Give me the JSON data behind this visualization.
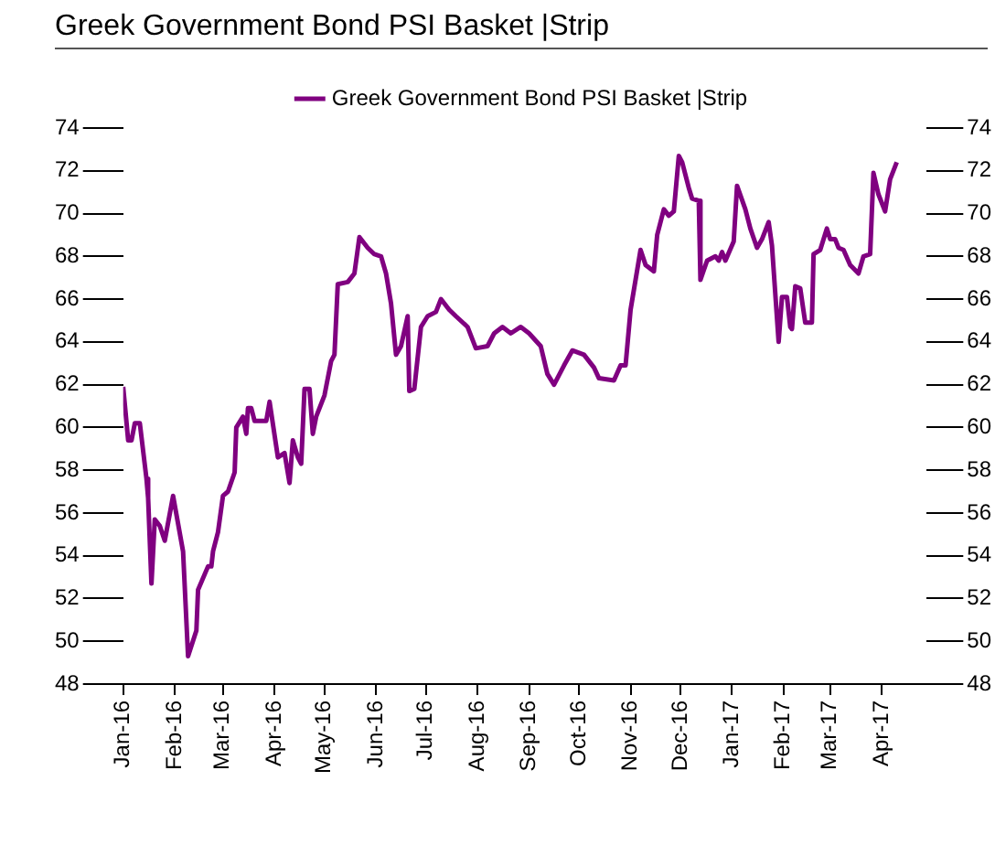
{
  "chart_data": {
    "type": "line",
    "title": "Greek Government Bond PSI Basket |Strip",
    "x": [
      "2016-01-01",
      "2016-01-04",
      "2016-01-06",
      "2016-01-08",
      "2016-01-11",
      "2016-01-15",
      "2016-01-16",
      "2016-01-18",
      "2016-01-20",
      "2016-01-23",
      "2016-01-26",
      "2016-01-31",
      "2016-02-06",
      "2016-02-09",
      "2016-02-14",
      "2016-02-15",
      "2016-02-21",
      "2016-02-23",
      "2016-02-24",
      "2016-02-27",
      "2016-03-01",
      "2016-03-04",
      "2016-03-08",
      "2016-03-09",
      "2016-03-13",
      "2016-03-15",
      "2016-03-16",
      "2016-03-18",
      "2016-03-20",
      "2016-03-27",
      "2016-03-29",
      "2016-04-03",
      "2016-04-07",
      "2016-04-10",
      "2016-04-12",
      "2016-04-15",
      "2016-04-17",
      "2016-04-19",
      "2016-04-22",
      "2016-04-24",
      "2016-04-26",
      "2016-05-01",
      "2016-05-05",
      "2016-05-07",
      "2016-05-09",
      "2016-05-15",
      "2016-05-19",
      "2016-05-22",
      "2016-05-27",
      "2016-05-31",
      "2016-06-04",
      "2016-06-07",
      "2016-06-10",
      "2016-06-13",
      "2016-06-16",
      "2016-06-20",
      "2016-06-21",
      "2016-06-24",
      "2016-06-28",
      "2016-07-02",
      "2016-07-07",
      "2016-07-10",
      "2016-07-15",
      "2016-07-19",
      "2016-07-26",
      "2016-07-31",
      "2016-08-07",
      "2016-08-11",
      "2016-08-16",
      "2016-08-21",
      "2016-08-27",
      "2016-09-01",
      "2016-09-08",
      "2016-09-12",
      "2016-09-16",
      "2016-09-22",
      "2016-09-27",
      "2016-10-04",
      "2016-10-10",
      "2016-10-13",
      "2016-10-22",
      "2016-10-26",
      "2016-10-29",
      "2016-11-01",
      "2016-11-07",
      "2016-11-10",
      "2016-11-15",
      "2016-11-17",
      "2016-11-21",
      "2016-11-24",
      "2016-11-27",
      "2016-11-30",
      "2016-12-02",
      "2016-12-06",
      "2016-12-08",
      "2016-12-12",
      "2016-12-13",
      "2016-12-17",
      "2016-12-22",
      "2016-12-24",
      "2016-12-26",
      "2016-12-28",
      "2017-01-02",
      "2017-01-04",
      "2017-01-09",
      "2017-01-12",
      "2017-01-16",
      "2017-01-19",
      "2017-01-23",
      "2017-01-25",
      "2017-01-29",
      "2017-01-31",
      "2017-02-03",
      "2017-02-05",
      "2017-02-06",
      "2017-02-08",
      "2017-02-11",
      "2017-02-14",
      "2017-02-18",
      "2017-02-19",
      "2017-02-23",
      "2017-02-27",
      "2017-03-01",
      "2017-03-04",
      "2017-03-06",
      "2017-03-09",
      "2017-03-13",
      "2017-03-18",
      "2017-03-21",
      "2017-03-25",
      "2017-03-27",
      "2017-03-30",
      "2017-04-03",
      "2017-04-06",
      "2017-04-10"
    ],
    "series": [
      {
        "name": "Greek Government Bond PSI Basket |Strip",
        "color": "#800080",
        "values": [
          61.9,
          59.4,
          59.4,
          60.2,
          60.2,
          57.6,
          56.7,
          52.7,
          55.7,
          55.4,
          54.7,
          56.8,
          54.2,
          49.3,
          50.5,
          52.4,
          53.5,
          53.5,
          54.2,
          55.1,
          56.8,
          57.0,
          57.9,
          60.0,
          60.5,
          59.7,
          60.9,
          60.9,
          60.3,
          60.3,
          61.2,
          58.6,
          58.8,
          57.4,
          59.4,
          58.6,
          58.3,
          61.8,
          61.8,
          59.7,
          60.5,
          61.5,
          63.1,
          63.4,
          66.7,
          66.8,
          67.2,
          68.9,
          68.4,
          68.1,
          68.0,
          67.2,
          65.8,
          63.4,
          63.8,
          65.2,
          61.7,
          61.8,
          64.7,
          65.2,
          65.4,
          66.0,
          65.5,
          65.2,
          64.7,
          63.7,
          63.8,
          64.4,
          64.7,
          64.4,
          64.7,
          64.4,
          63.8,
          62.5,
          62.0,
          62.9,
          63.6,
          63.4,
          62.8,
          62.3,
          62.2,
          62.9,
          62.9,
          65.5,
          68.3,
          67.6,
          67.3,
          69.0,
          70.2,
          69.9,
          70.1,
          72.7,
          72.4,
          71.2,
          70.7,
          70.6,
          66.9,
          67.8,
          68.0,
          67.8,
          68.2,
          67.8,
          68.7,
          71.3,
          70.2,
          69.3,
          68.4,
          68.8,
          69.6,
          68.5,
          64.0,
          66.1,
          66.1,
          64.7,
          64.6,
          66.6,
          66.5,
          64.9,
          64.9,
          68.1,
          68.3,
          69.3,
          68.8,
          68.8,
          68.4,
          68.3,
          67.6,
          67.2,
          68.0,
          68.1,
          71.9,
          70.9,
          70.1,
          71.6,
          72.4
        ]
      }
    ],
    "xlim": [
      "2016-01-01",
      "2017-04-28"
    ],
    "xticks": [
      {
        "value": "2016-01-01",
        "label": "Jan-16"
      },
      {
        "value": "2016-02-01",
        "label": "Feb-16"
      },
      {
        "value": "2016-03-01",
        "label": "Mar-16"
      },
      {
        "value": "2016-04-01",
        "label": "Apr-16"
      },
      {
        "value": "2016-05-01",
        "label": "May-16"
      },
      {
        "value": "2016-06-01",
        "label": "Jun-16"
      },
      {
        "value": "2016-07-01",
        "label": "Jul-16"
      },
      {
        "value": "2016-08-01",
        "label": "Aug-16"
      },
      {
        "value": "2016-09-01",
        "label": "Sep-16"
      },
      {
        "value": "2016-10-01",
        "label": "Oct-16"
      },
      {
        "value": "2016-11-01",
        "label": "Nov-16"
      },
      {
        "value": "2016-12-01",
        "label": "Dec-16"
      },
      {
        "value": "2017-01-01",
        "label": "Jan-17"
      },
      {
        "value": "2017-02-01",
        "label": "Feb-17"
      },
      {
        "value": "2017-03-01",
        "label": "Mar-17"
      },
      {
        "value": "2017-04-01",
        "label": "Apr-17"
      }
    ],
    "ylim": [
      48,
      74
    ],
    "yticks": [
      48,
      50,
      52,
      54,
      56,
      58,
      60,
      62,
      64,
      66,
      68,
      70,
      72,
      74
    ],
    "y2lim": [
      48,
      74
    ],
    "y2ticks": [
      48,
      50,
      52,
      54,
      56,
      58,
      60,
      62,
      64,
      66,
      68,
      70,
      72,
      74
    ],
    "grid": false,
    "legend": "top",
    "marker": "none",
    "line_style": "solid"
  }
}
